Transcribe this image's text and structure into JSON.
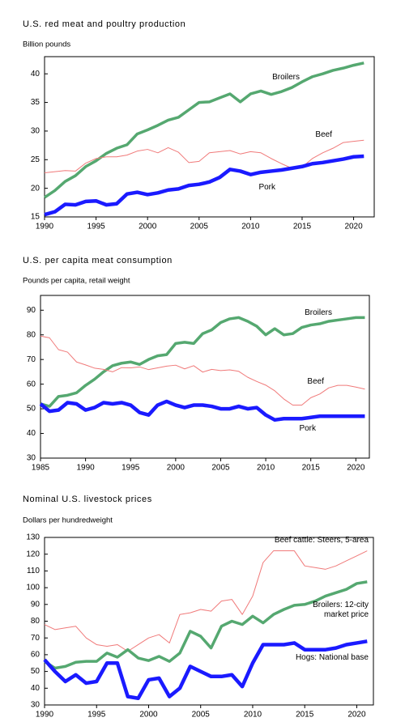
{
  "chart_data": [
    {
      "type": "line",
      "title": "U.S. red meat and poultry production",
      "y_label": "Billion pounds",
      "x": [
        1990,
        1991,
        1992,
        1993,
        1994,
        1995,
        1996,
        1997,
        1998,
        1999,
        2000,
        2001,
        2002,
        2003,
        2004,
        2005,
        2006,
        2007,
        2008,
        2009,
        2010,
        2011,
        2012,
        2013,
        2014,
        2015,
        2016,
        2017,
        2018,
        2019,
        2020,
        2021
      ],
      "series": [
        {
          "name": "Broilers",
          "color": "#55a870",
          "values": [
            18.4,
            19.6,
            21.2,
            22.2,
            23.8,
            24.8,
            26.1,
            27.0,
            27.6,
            29.5,
            30.2,
            31.0,
            31.9,
            32.4,
            33.7,
            35.0,
            35.1,
            35.8,
            36.5,
            35.1,
            36.5,
            37.0,
            36.4,
            36.9,
            37.6,
            38.6,
            39.5,
            40.0,
            40.6,
            41.0,
            41.5,
            41.9
          ]
        },
        {
          "name": "Beef",
          "color": "#f07a7a",
          "values": [
            22.7,
            22.9,
            23.1,
            23.0,
            24.4,
            25.2,
            25.5,
            25.5,
            25.8,
            26.5,
            26.8,
            26.2,
            27.1,
            26.3,
            24.5,
            24.7,
            26.2,
            26.4,
            26.6,
            26.0,
            26.4,
            26.2,
            25.2,
            24.3,
            23.5,
            23.7,
            25.2,
            26.2,
            27.0,
            28.0,
            28.2,
            28.4
          ]
        },
        {
          "name": "Pork",
          "color": "#1a1aff",
          "values": [
            15.4,
            15.9,
            17.2,
            17.1,
            17.7,
            17.8,
            17.1,
            17.3,
            19.0,
            19.3,
            18.9,
            19.2,
            19.7,
            19.9,
            20.5,
            20.7,
            21.1,
            21.9,
            23.3,
            23.0,
            22.4,
            22.8,
            23.0,
            23.2,
            23.5,
            23.8,
            24.3,
            24.5,
            24.8,
            25.1,
            25.5,
            25.6
          ]
        }
      ],
      "xlim": [
        1990,
        2022
      ],
      "ylim": [
        15,
        43
      ],
      "xticks": [
        1990,
        1995,
        2000,
        2005,
        2010,
        2015,
        2020
      ],
      "yticks": [
        15,
        20,
        25,
        30,
        35,
        40
      ]
    },
    {
      "type": "line",
      "title": "U.S. per capita meat consumption",
      "y_label": "Pounds per capita, retail weight",
      "x": [
        1985,
        1986,
        1987,
        1988,
        1989,
        1990,
        1991,
        1992,
        1993,
        1994,
        1995,
        1996,
        1997,
        1998,
        1999,
        2000,
        2001,
        2002,
        2003,
        2004,
        2005,
        2006,
        2007,
        2008,
        2009,
        2010,
        2011,
        2012,
        2013,
        2014,
        2015,
        2016,
        2017,
        2018,
        2019,
        2020,
        2021
      ],
      "series": [
        {
          "name": "Broilers",
          "color": "#55a870",
          "values": [
            52,
            51,
            55,
            55.5,
            56.5,
            59.5,
            62,
            65,
            67.5,
            68.5,
            69,
            68,
            70,
            71.5,
            72,
            76.5,
            77,
            76.5,
            80.5,
            82,
            85,
            86.5,
            87,
            85.5,
            83.5,
            80,
            82.5,
            80,
            80.5,
            83,
            84,
            84.5,
            85.5,
            86,
            86.5,
            87,
            87
          ]
        },
        {
          "name": "Beef",
          "color": "#f07a7a",
          "values": [
            79.5,
            78.8,
            74,
            73,
            69,
            67.8,
            66.5,
            66,
            65,
            66.7,
            66.6,
            67,
            65.9,
            66.6,
            67.3,
            67.7,
            66.2,
            67.5,
            64.9,
            66,
            65.5,
            65.8,
            65.2,
            62.8,
            61.1,
            59.6,
            57.3,
            54,
            51.5,
            51.5,
            54.5,
            56,
            58.5,
            59.5,
            59.5,
            58.8,
            58
          ]
        },
        {
          "name": "Pork",
          "color": "#1a1aff",
          "values": [
            52,
            49,
            49.5,
            52.5,
            52,
            49.5,
            50.5,
            52.5,
            52,
            52.5,
            51.5,
            48.5,
            47.5,
            51.5,
            53,
            51.5,
            50.5,
            51.5,
            51.5,
            51,
            50,
            50,
            51,
            50,
            50.5,
            47.5,
            45.5,
            46,
            46,
            46,
            46.5,
            47,
            47,
            47,
            47,
            47,
            47
          ]
        }
      ],
      "xlim": [
        1985,
        2021.5
      ],
      "ylim": [
        30,
        96
      ],
      "xticks": [
        1985,
        1990,
        1995,
        2000,
        2005,
        2010,
        2015,
        2020
      ],
      "yticks": [
        30,
        40,
        50,
        60,
        70,
        80,
        90
      ]
    },
    {
      "type": "line",
      "title": "Nominal U.S. livestock prices",
      "y_label": "Dollars per hundredweight",
      "x": [
        1990,
        1991,
        1992,
        1993,
        1994,
        1995,
        1996,
        1997,
        1998,
        1999,
        2000,
        2001,
        2002,
        2003,
        2004,
        2005,
        2006,
        2007,
        2008,
        2009,
        2010,
        2011,
        2012,
        2013,
        2014,
        2015,
        2016,
        2017,
        2018,
        2019,
        2020,
        2021
      ],
      "series": [
        {
          "name": "Beef cattle: Steers, 5-area",
          "color": "#f07a7a",
          "values": [
            78,
            75,
            76,
            77,
            70,
            66,
            65,
            66,
            62,
            66,
            70,
            72,
            67,
            84,
            85,
            87,
            86,
            92,
            93,
            84,
            95,
            115,
            122,
            122,
            122,
            113,
            112,
            111,
            113,
            116,
            119,
            122
          ]
        },
        {
          "name": "Broilers: 12-city market price",
          "color": "#55a870",
          "values": [
            56,
            52,
            53,
            55.5,
            56,
            56,
            61,
            58.5,
            63,
            58,
            56.5,
            59,
            56,
            61,
            74,
            71,
            64,
            77,
            80,
            78,
            83,
            79,
            84,
            87,
            89.5,
            90,
            92,
            95,
            97,
            99,
            102.5,
            103.5
          ]
        },
        {
          "name": "Hogs: National base",
          "color": "#1a1aff",
          "values": [
            57,
            50,
            44,
            48,
            43,
            44,
            55,
            55,
            35,
            34,
            45,
            46,
            35,
            40,
            53,
            50,
            47,
            47,
            48,
            41,
            55,
            66,
            66,
            66,
            67,
            63,
            63,
            63,
            64,
            66,
            67,
            68
          ]
        }
      ],
      "xlim": [
        1990,
        2021.6
      ],
      "ylim": [
        30,
        130
      ],
      "xticks": [
        1990,
        1995,
        2000,
        2005,
        2010,
        2015,
        2020
      ],
      "yticks": [
        30,
        40,
        50,
        60,
        70,
        80,
        90,
        100,
        110,
        120,
        130
      ]
    }
  ]
}
